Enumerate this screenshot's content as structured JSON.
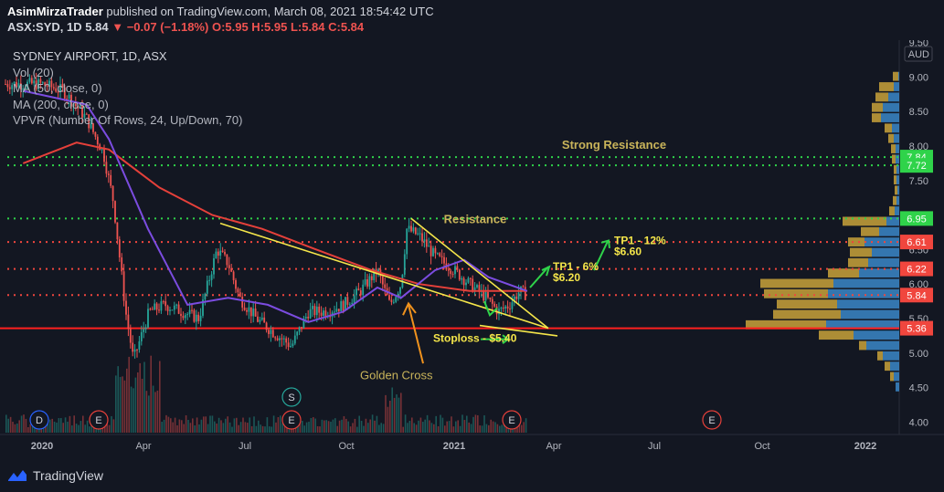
{
  "header": {
    "author": "AsimMirzaTrader",
    "published_text": "published on TradingView.com, March 08, 2021 18:54:42 UTC",
    "symbol": "ASX:SYD, 1D",
    "price": "5.84",
    "change": "−0.07 (−1.18%)",
    "ohlc": "O:5.95 H:5.95 L:5.84 C:5.84"
  },
  "legend": {
    "title": "SYDNEY AIRPORT, 1D, ASX",
    "vol": "Vol (20)",
    "ma50": "MA (50, close, 0)",
    "ma200": "MA (200, close, 0)",
    "vpvr": "VPVR (Number Of Rows, 24, Up/Down, 70)"
  },
  "footer": {
    "brand": "TradingView"
  },
  "colors": {
    "background": "#131722",
    "up": "#26a69a",
    "down": "#ef5350",
    "ma50": "#7b4ce0",
    "ma200": "#e5403a",
    "trendline": "#f5e64a",
    "support_line": "#ff1f1f",
    "dotted_red": "#f0463e",
    "dotted_green": "#2fd34a",
    "vpvr_up": "#3b87c8",
    "vpvr_down": "#c9a23a"
  },
  "chart_data": {
    "type": "candlestick",
    "currency": "AUD",
    "y_axis_ticks": [
      "9.50",
      "9.00",
      "8.50",
      "8.00",
      "7.50",
      "7.00",
      "6.50",
      "6.00",
      "5.50",
      "5.00",
      "4.50",
      "4.00"
    ],
    "x_axis_ticks": [
      "2020",
      "Apr",
      "Jul",
      "Oct",
      "2021",
      "Apr",
      "Jul",
      "Oct",
      "2022"
    ],
    "ylim": [
      3.85,
      9.55
    ],
    "price_labels": [
      {
        "text": "7.84",
        "value": 7.84,
        "color": "#2fd34a"
      },
      {
        "text": "7.72",
        "value": 7.72,
        "color": "#2fd34a"
      },
      {
        "text": "6.95",
        "value": 6.95,
        "color": "#2fd34a"
      },
      {
        "text": "6.61",
        "value": 6.61,
        "color": "#f0463e"
      },
      {
        "text": "6.22",
        "value": 6.22,
        "color": "#f0463e"
      },
      {
        "text": "5.84",
        "value": 5.84,
        "color": "#f0463e"
      },
      {
        "text": "5.36",
        "value": 5.36,
        "color": "#f0463e"
      }
    ],
    "horizontal_levels": [
      {
        "value": 7.84,
        "style": "dotted",
        "color": "#2fd34a"
      },
      {
        "value": 7.72,
        "style": "dotted",
        "color": "#2fd34a"
      },
      {
        "value": 6.95,
        "style": "dotted",
        "color": "#2fd34a"
      },
      {
        "value": 6.61,
        "style": "dotted",
        "color": "#f0463e"
      },
      {
        "value": 6.22,
        "style": "dotted",
        "color": "#f0463e"
      },
      {
        "value": 5.84,
        "style": "dotted",
        "color": "#f0463e"
      },
      {
        "value": 5.36,
        "style": "solid",
        "color": "#ff1f1f"
      }
    ],
    "close_series": [
      {
        "date": "2020-01-01",
        "close": 8.9
      },
      {
        "date": "2020-01-20",
        "close": 8.8
      },
      {
        "date": "2020-02-10",
        "close": 8.4
      },
      {
        "date": "2020-02-25",
        "close": 7.9
      },
      {
        "date": "2020-03-05",
        "close": 7.2
      },
      {
        "date": "2020-03-16",
        "close": 5.6
      },
      {
        "date": "2020-03-23",
        "close": 4.9
      },
      {
        "date": "2020-04-06",
        "close": 5.6
      },
      {
        "date": "2020-04-20",
        "close": 5.7
      },
      {
        "date": "2020-05-05",
        "close": 5.6
      },
      {
        "date": "2020-05-20",
        "close": 5.5
      },
      {
        "date": "2020-06-05",
        "close": 6.5
      },
      {
        "date": "2020-06-15",
        "close": 6.3
      },
      {
        "date": "2020-06-25",
        "close": 5.8
      },
      {
        "date": "2020-07-10",
        "close": 5.5
      },
      {
        "date": "2020-07-25",
        "close": 5.3
      },
      {
        "date": "2020-08-10",
        "close": 5.1
      },
      {
        "date": "2020-08-25",
        "close": 5.6
      },
      {
        "date": "2020-09-10",
        "close": 5.6
      },
      {
        "date": "2020-09-25",
        "close": 5.7
      },
      {
        "date": "2020-10-10",
        "close": 5.9
      },
      {
        "date": "2020-10-25",
        "close": 6.2
      },
      {
        "date": "2020-11-05",
        "close": 5.7
      },
      {
        "date": "2020-11-15",
        "close": 6.0
      },
      {
        "date": "2020-11-20",
        "close": 6.8
      },
      {
        "date": "2020-12-01",
        "close": 6.7
      },
      {
        "date": "2020-12-15",
        "close": 6.4
      },
      {
        "date": "2021-01-01",
        "close": 6.2
      },
      {
        "date": "2021-01-15",
        "close": 6.0
      },
      {
        "date": "2021-01-30",
        "close": 5.8
      },
      {
        "date": "2021-02-10",
        "close": 5.6
      },
      {
        "date": "2021-02-20",
        "close": 5.7
      },
      {
        "date": "2021-03-01",
        "close": 5.9
      },
      {
        "date": "2021-03-08",
        "close": 5.84
      }
    ],
    "annotations": [
      {
        "text": "Strong Resistance",
        "color": "#c9b45a"
      },
      {
        "text": "Resistance",
        "color": "#c9b45a"
      },
      {
        "text": "TP1 - 12%",
        "color": "#f5e64a"
      },
      {
        "text": "$6.60",
        "color": "#f5e64a"
      },
      {
        "text": "TP1 - 6%",
        "color": "#f5e64a"
      },
      {
        "text": "$6.20",
        "color": "#f5e64a"
      },
      {
        "text": "Stoploss - $5.40",
        "color": "#f5e64a"
      },
      {
        "text": "Golden Cross",
        "color": "#c9b45a"
      }
    ],
    "event_markers": [
      "D",
      "E",
      "E",
      "S",
      "E",
      "E",
      "E"
    ]
  }
}
